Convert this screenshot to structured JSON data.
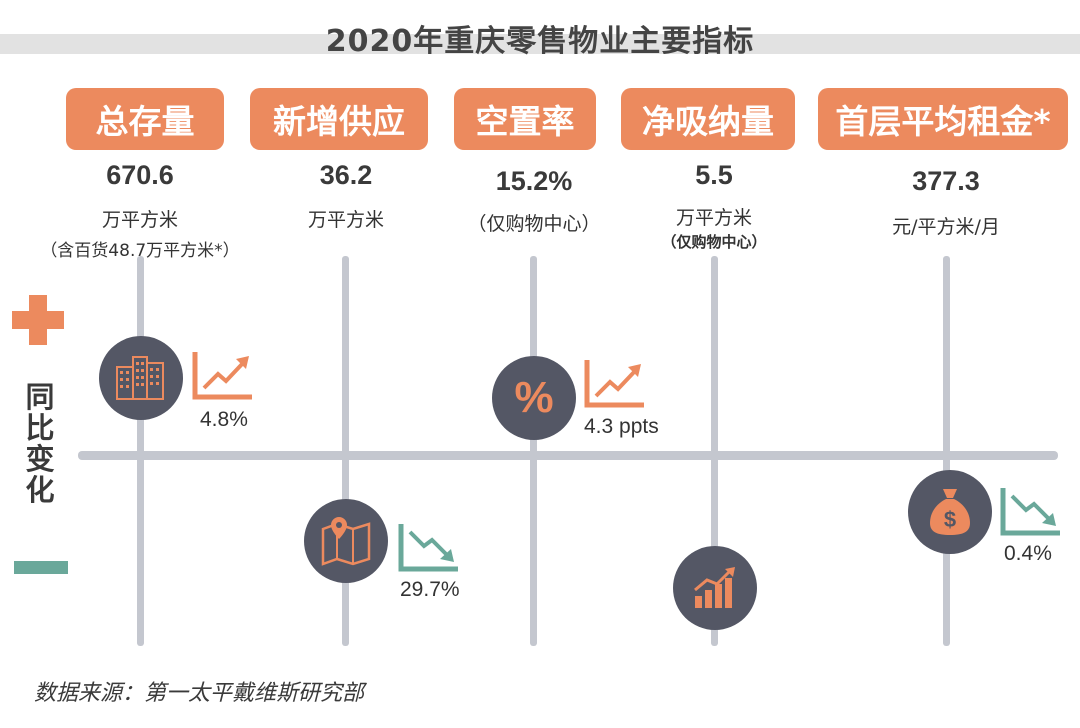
{
  "title": "2020年重庆零售物业主要指标",
  "colors": {
    "accent": "#ec8a5e",
    "up": "#ec8a5e",
    "down": "#6aa89a",
    "circle": "#545765",
    "grid": "#c4c7cf"
  },
  "legend": {
    "plus_icon": "plus-sign",
    "minus_icon": "minus-sign",
    "axis_label": "同比变化"
  },
  "metrics": [
    {
      "label": "总存量",
      "value": "670.6",
      "unit": "万平方米",
      "note": "（含百货48.7万平方米*）",
      "icon": "buildings-icon",
      "trend": "up",
      "change": "4.8%"
    },
    {
      "label": "新增供应",
      "value": "36.2",
      "unit": "万平方米",
      "note": "",
      "icon": "map-pin-icon",
      "trend": "down",
      "change": "29.7%"
    },
    {
      "label": "空置率",
      "value": "15.2%",
      "unit": "（仅购物中心）",
      "note": "",
      "icon": "percent-icon",
      "trend": "up",
      "change": "4.3 ppts"
    },
    {
      "label": "净吸纳量",
      "value": "5.5",
      "unit": "万平方米",
      "note": "（仅购物中心）",
      "icon": "bar-chart-icon",
      "trend": "",
      "change": ""
    },
    {
      "label": "首层平均租金*",
      "value": "377.3",
      "unit": "元/平方米/月",
      "note": "",
      "icon": "money-bag-icon",
      "trend": "down",
      "change": "0.4%"
    }
  ],
  "source": "数据来源：第一太平戴维斯研究部"
}
